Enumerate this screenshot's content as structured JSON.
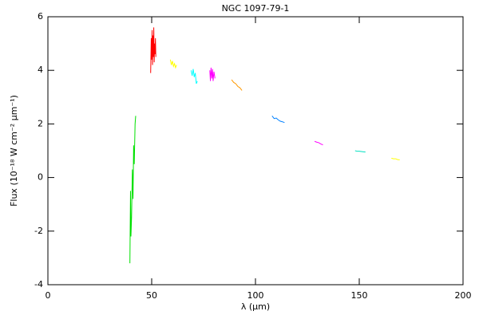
{
  "chart_data": {
    "type": "line",
    "title": "NGC 1097-79-1",
    "xlabel": "λ (μm)",
    "ylabel": "Flux (10⁻¹⁸ W cm⁻² μm⁻¹)",
    "xlim": [
      0,
      200
    ],
    "xticks": [
      0,
      50,
      100,
      150,
      200
    ],
    "ylim": [
      -4,
      6
    ],
    "yticks": [
      -4,
      -2,
      0,
      2,
      4,
      6
    ],
    "series": [
      {
        "color": "#00e000",
        "x": [
          39.5,
          39.8,
          40,
          40.3,
          40.7,
          41,
          41.3,
          41.6,
          42,
          42.3
        ],
        "values": [
          -3.2,
          -0.5,
          -2.2,
          -1.5,
          0.3,
          -0.8,
          1.2,
          0.5,
          2.0,
          2.3
        ]
      },
      {
        "color": "#ff0000",
        "x": [
          49.5,
          49.8,
          50,
          50.2,
          50.4,
          50.6,
          50.8,
          51,
          51.2,
          51.4,
          51.6,
          51.8,
          52
        ],
        "values": [
          3.9,
          5.2,
          4.4,
          5.5,
          4.2,
          5.3,
          4.5,
          5.6,
          4.3,
          5.0,
          4.6,
          5.2,
          4.5
        ]
      },
      {
        "color": "#ffff00",
        "x": [
          59,
          59.5,
          60,
          60.5,
          61,
          61.5,
          62
        ],
        "values": [
          4.4,
          4.2,
          4.35,
          4.15,
          4.25,
          4.1,
          4.2
        ]
      },
      {
        "color": "#00ffff",
        "x": [
          69,
          69.5,
          70,
          70.5,
          71,
          71.5,
          72
        ],
        "values": [
          4.0,
          3.8,
          4.05,
          3.75,
          3.9,
          3.5,
          3.6
        ]
      },
      {
        "color": "#ff00ff",
        "x": [
          78,
          78.3,
          78.6,
          79,
          79.3,
          79.6,
          80,
          80.5
        ],
        "values": [
          4.0,
          3.6,
          4.1,
          3.7,
          4.05,
          3.6,
          3.95,
          3.7
        ]
      },
      {
        "color": "#ff9900",
        "x": [
          88.5,
          89.5,
          90.5,
          91.5,
          92.5,
          93.5
        ],
        "values": [
          3.65,
          3.55,
          3.5,
          3.4,
          3.35,
          3.25
        ]
      },
      {
        "color": "#0080ff",
        "x": [
          108,
          109,
          110,
          111,
          112,
          113,
          114
        ],
        "values": [
          2.3,
          2.2,
          2.22,
          2.15,
          2.1,
          2.08,
          2.05
        ]
      },
      {
        "color": "#ff00ff",
        "x": [
          128.5,
          129.5,
          130.5,
          131.5,
          132.5
        ],
        "values": [
          1.35,
          1.32,
          1.3,
          1.25,
          1.22
        ]
      },
      {
        "color": "#00e0c0",
        "x": [
          148,
          149,
          150,
          151,
          152,
          153
        ],
        "values": [
          1.0,
          0.98,
          0.98,
          0.97,
          0.96,
          0.95
        ]
      },
      {
        "color": "#ffff00",
        "x": [
          165.5,
          166.5,
          167.5,
          168.5,
          169.5
        ],
        "values": [
          0.72,
          0.7,
          0.7,
          0.67,
          0.66
        ]
      }
    ]
  }
}
